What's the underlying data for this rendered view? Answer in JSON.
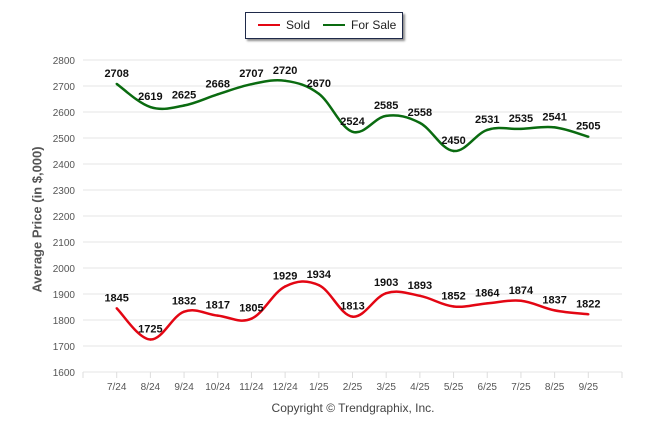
{
  "legend": {
    "items": [
      {
        "name": "Sold",
        "color": "#e30613"
      },
      {
        "name": "For Sale",
        "color": "#0a6b10"
      }
    ]
  },
  "footer": {
    "copyright": "Copyright © Trendgraphix, Inc."
  },
  "chart_data": {
    "type": "line",
    "title": "",
    "xlabel": "",
    "ylabel": "Average Price (in $,000)",
    "ylim": [
      1600,
      2800
    ],
    "yticks": [
      1600,
      1700,
      1800,
      1900,
      2000,
      2100,
      2200,
      2300,
      2400,
      2500,
      2600,
      2700,
      2800
    ],
    "grid": true,
    "legend_position": "top-center",
    "categories": [
      "7/24",
      "8/24",
      "9/24",
      "10/24",
      "11/24",
      "12/24",
      "1/25",
      "2/25",
      "3/25",
      "4/25",
      "5/25",
      "6/25",
      "7/25",
      "8/25",
      "9/25"
    ],
    "series": [
      {
        "name": "Sold",
        "color": "#e30613",
        "values": [
          1845,
          1725,
          1832,
          1817,
          1805,
          1929,
          1934,
          1813,
          1903,
          1893,
          1852,
          1864,
          1874,
          1837,
          1822
        ]
      },
      {
        "name": "For Sale",
        "color": "#0a6b10",
        "values": [
          2708,
          2619,
          2625,
          2668,
          2707,
          2720,
          2670,
          2524,
          2585,
          2558,
          2450,
          2531,
          2535,
          2541,
          2505
        ]
      }
    ]
  }
}
